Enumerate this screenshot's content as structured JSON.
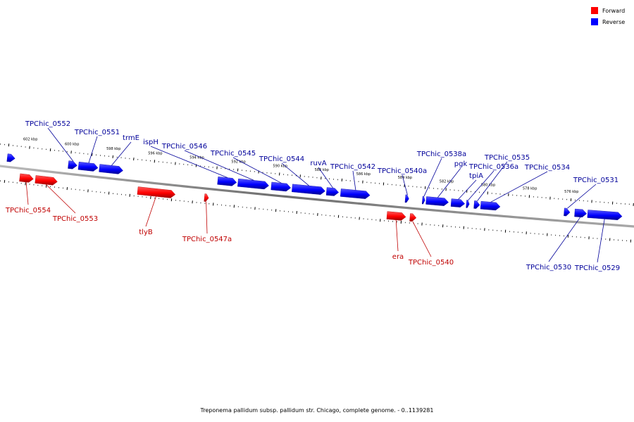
{
  "legend": {
    "forward_label": "Forward",
    "reverse_label": "Reverse",
    "forward_color": "#ff0000",
    "reverse_color": "#0000ff"
  },
  "colors": {
    "forward_label": "#c00000",
    "reverse_label": "#00009a",
    "backbone": "#7f7f7f"
  },
  "caption": "Treponema pallidum subsp. pallidum str. Chicago, complete genome. - 0..1139281",
  "scale": {
    "unit": "kbp",
    "ticks": [
      {
        "value": 602,
        "label": "602 kbp"
      },
      {
        "value": 600,
        "label": "600 kbp"
      },
      {
        "value": 598,
        "label": "598 kbp"
      },
      {
        "value": 596,
        "label": "596 kbp"
      },
      {
        "value": 594,
        "label": "594 kbp"
      },
      {
        "value": 592,
        "label": "592 kbp"
      },
      {
        "value": 590,
        "label": "590 kbp"
      },
      {
        "value": 588,
        "label": "588 kbp"
      },
      {
        "value": 586,
        "label": "586 kbp"
      },
      {
        "value": 584,
        "label": "584 kbp"
      },
      {
        "value": 582,
        "label": "582 kbp"
      },
      {
        "value": 580,
        "label": "580 kbp"
      },
      {
        "value": 578,
        "label": "578 kbp"
      },
      {
        "value": 576,
        "label": "576 kbp"
      }
    ]
  },
  "genes": [
    {
      "name": "",
      "strand": "reverse",
      "start": 602.63,
      "end": 603.0
    },
    {
      "name": "TPChic_0554",
      "strand": "forward",
      "start": 601.65,
      "end": 602.3
    },
    {
      "name": "TPChic_0553",
      "strand": "forward",
      "start": 600.5,
      "end": 601.55
    },
    {
      "name": "TPChic_0552",
      "strand": "reverse",
      "start": 599.65,
      "end": 600.07
    },
    {
      "name": "TPChic_0551",
      "strand": "reverse",
      "start": 598.65,
      "end": 599.58
    },
    {
      "name": "trmE",
      "strand": "reverse",
      "start": 597.45,
      "end": 598.58
    },
    {
      "name": "tlyB",
      "strand": "forward",
      "start": 594.85,
      "end": 596.65
    },
    {
      "name": "TPChic_0547a",
      "strand": "forward",
      "start": 593.25,
      "end": 593.45
    },
    {
      "name": "ispH",
      "strand": "reverse",
      "start": 592.0,
      "end": 592.9
    },
    {
      "name": "TPChic_0546",
      "strand": "reverse",
      "start": 590.45,
      "end": 591.93
    },
    {
      "name": "TPChic_0545",
      "strand": "reverse",
      "start": 589.4,
      "end": 590.33
    },
    {
      "name": "TPChic_0544",
      "strand": "reverse",
      "start": 587.75,
      "end": 589.33
    },
    {
      "name": "ruvA",
      "strand": "reverse",
      "start": 587.1,
      "end": 587.68
    },
    {
      "name": "TPChic_0542",
      "strand": "reverse",
      "start": 585.6,
      "end": 587.0
    },
    {
      "name": "era",
      "strand": "forward",
      "start": 583.8,
      "end": 584.7
    },
    {
      "name": "TPChic_0540",
      "strand": "forward",
      "start": 583.3,
      "end": 583.6
    },
    {
      "name": "TPChic_0540a",
      "strand": "reverse",
      "start": 583.73,
      "end": 583.9
    },
    {
      "name": "TPChic_0538a",
      "strand": "reverse",
      "start": 582.96,
      "end": 583.08
    },
    {
      "name": "pgk",
      "strand": "reverse",
      "start": 581.83,
      "end": 582.9
    },
    {
      "name": "tpiA",
      "strand": "reverse",
      "start": 581.05,
      "end": 581.7
    },
    {
      "name": "TPChic_0536a",
      "strand": "reverse",
      "start": 580.83,
      "end": 580.97
    },
    {
      "name": "TPChic_0535",
      "strand": "reverse",
      "start": 580.33,
      "end": 580.6
    },
    {
      "name": "TPChic_0534",
      "strand": "reverse",
      "start": 579.35,
      "end": 580.28
    },
    {
      "name": "TPChic_0531",
      "strand": "reverse",
      "start": 576.0,
      "end": 576.28
    },
    {
      "name": "TPChic_0530",
      "strand": "reverse",
      "start": 575.2,
      "end": 575.77
    },
    {
      "name": "TPChic_0529",
      "strand": "reverse",
      "start": 573.5,
      "end": 575.15
    }
  ]
}
